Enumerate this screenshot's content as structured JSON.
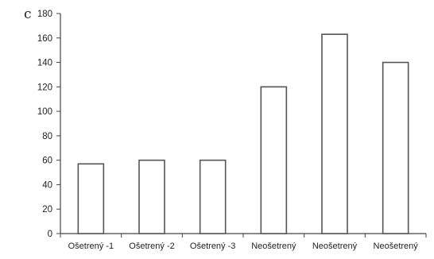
{
  "chart_data": {
    "type": "bar",
    "panel_label": "c",
    "title": "",
    "xlabel": "",
    "ylabel": "",
    "categories": [
      "Ošetrený -1",
      "Ošetrený -2",
      "Ošetrený -3",
      "Neošetrený",
      "Neošetrený",
      "Neošetrený"
    ],
    "values": [
      57,
      60,
      60,
      120,
      163,
      140
    ],
    "ylim": [
      0,
      180
    ],
    "yticks": [
      0,
      20,
      40,
      60,
      80,
      100,
      120,
      140,
      160,
      180
    ],
    "grid": false,
    "legend": "none",
    "colors": {
      "bar_fill": "#ffffff",
      "bar_stroke": "#555555",
      "axis": "#444444"
    }
  }
}
